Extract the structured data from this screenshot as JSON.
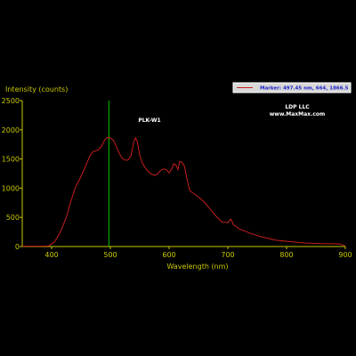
{
  "chart_data": {
    "type": "line",
    "xlabel": "Wavelength (nm)",
    "ylabel": "Intensity (counts)",
    "xlim": [
      350,
      900
    ],
    "ylim": [
      0,
      2500
    ],
    "x_ticks": [
      400,
      500,
      600,
      700,
      800,
      900
    ],
    "y_ticks": [
      0,
      500,
      1000,
      1500,
      2000,
      2500
    ],
    "series": [
      {
        "color": "#c81e1e",
        "x": [
          350,
          380,
          395,
          405,
          415,
          425,
          432,
          440,
          450,
          460,
          465,
          470,
          475,
          480,
          485,
          490,
          495,
          500,
          505,
          510,
          515,
          520,
          525,
          530,
          535,
          540,
          543,
          546,
          550,
          555,
          560,
          565,
          570,
          575,
          580,
          585,
          590,
          595,
          600,
          605,
          608,
          612,
          615,
          618,
          622,
          626,
          630,
          635,
          640,
          650,
          660,
          670,
          680,
          690,
          700,
          705,
          710,
          720,
          740,
          760,
          780,
          800,
          830,
          860,
          890,
          900
        ],
        "y": [
          5,
          5,
          10,
          80,
          250,
          500,
          750,
          1000,
          1200,
          1430,
          1550,
          1620,
          1640,
          1660,
          1720,
          1820,
          1870,
          1860,
          1820,
          1720,
          1600,
          1510,
          1480,
          1480,
          1550,
          1800,
          1860,
          1790,
          1560,
          1420,
          1340,
          1280,
          1240,
          1220,
          1240,
          1300,
          1330,
          1320,
          1260,
          1340,
          1420,
          1390,
          1320,
          1460,
          1440,
          1380,
          1180,
          960,
          920,
          850,
          760,
          640,
          520,
          420,
          410,
          470,
          370,
          300,
          220,
          160,
          110,
          90,
          60,
          50,
          45,
          10
        ]
      }
    ],
    "marker": {
      "x": 497.45,
      "color": "#00cc00"
    },
    "annotations": [
      "PLK-W1",
      "LDP LLC",
      "www.MaxMax.com"
    ],
    "legend": {
      "text": "Marker: 497.45 nm, 664, 1866.5",
      "position": "top-right",
      "line_color": "#c81e1e"
    },
    "grid": false,
    "axis_color": "#c8c800",
    "background": "#000000"
  }
}
